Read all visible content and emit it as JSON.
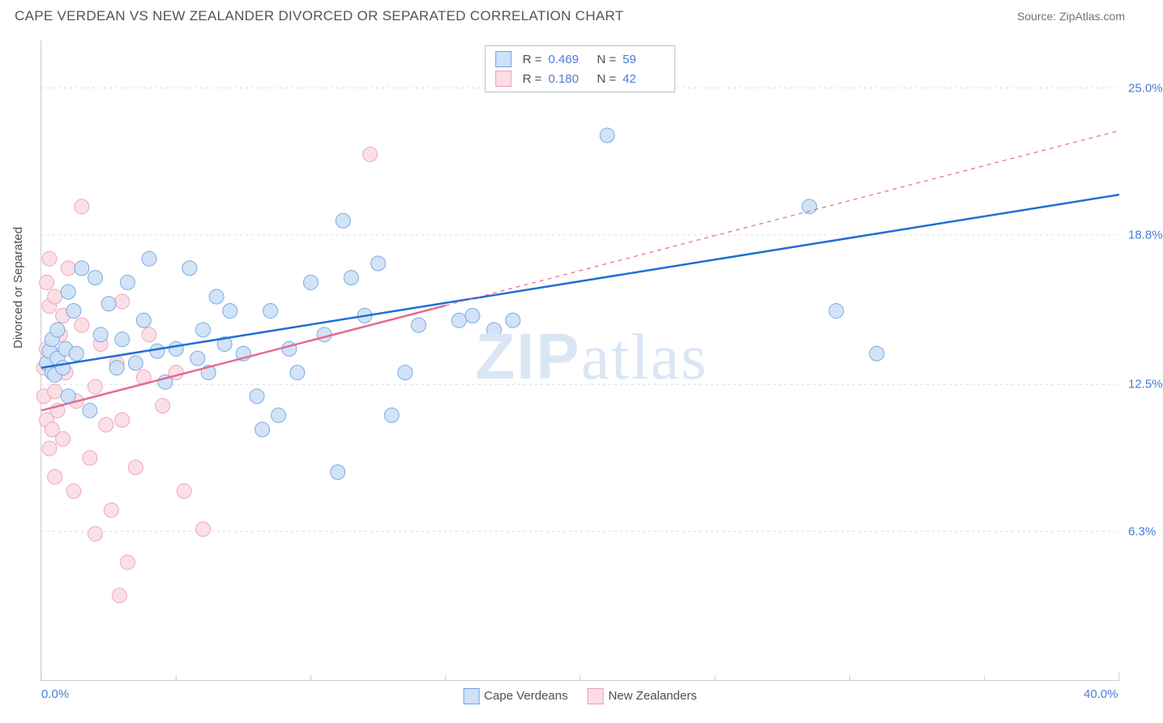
{
  "title": "CAPE VERDEAN VS NEW ZEALANDER DIVORCED OR SEPARATED CORRELATION CHART",
  "source_label": "Source: ZipAtlas.com",
  "y_axis_label": "Divorced or Separated",
  "watermark_prefix": "ZIP",
  "watermark_suffix": "atlas",
  "chart": {
    "type": "scatter",
    "background_color": "#ffffff",
    "grid_color": "#d9dce2",
    "axis_color": "#c9ccd2",
    "xlim": [
      0,
      40
    ],
    "ylim": [
      0,
      27
    ],
    "x_ticks": [
      {
        "v": 0.0,
        "label": "0.0%"
      },
      {
        "v": 40.0,
        "label": "40.0%"
      }
    ],
    "y_ticks": [
      {
        "v": 6.3,
        "label": "6.3%"
      },
      {
        "v": 12.5,
        "label": "12.5%"
      },
      {
        "v": 18.8,
        "label": "18.8%"
      },
      {
        "v": 25.0,
        "label": "25.0%"
      }
    ],
    "x_minor_ticks": [
      5,
      10,
      15,
      20,
      25,
      30,
      35
    ],
    "series": [
      {
        "name": "Cape Verdeans",
        "fill": "#cfe1f7",
        "stroke": "#6fa4e3",
        "line_color": "#1f6fd6",
        "line_width": 2.5,
        "line_dash_after_x": null,
        "marker_r": 9,
        "R": "0.469",
        "N": "59",
        "regression": {
          "x1": 0,
          "y1": 13.2,
          "x2": 40,
          "y2": 20.5
        },
        "points": [
          [
            0.2,
            13.4
          ],
          [
            0.3,
            13.9
          ],
          [
            0.4,
            13.0
          ],
          [
            0.4,
            14.4
          ],
          [
            0.5,
            12.9
          ],
          [
            0.6,
            13.6
          ],
          [
            0.6,
            14.8
          ],
          [
            0.8,
            13.2
          ],
          [
            0.9,
            14.0
          ],
          [
            1.0,
            12.0
          ],
          [
            1.0,
            16.4
          ],
          [
            1.2,
            15.6
          ],
          [
            1.3,
            13.8
          ],
          [
            1.5,
            17.4
          ],
          [
            1.8,
            11.4
          ],
          [
            2.0,
            17.0
          ],
          [
            2.2,
            14.6
          ],
          [
            2.5,
            15.9
          ],
          [
            2.8,
            13.2
          ],
          [
            3.0,
            14.4
          ],
          [
            3.2,
            16.8
          ],
          [
            3.5,
            13.4
          ],
          [
            3.8,
            15.2
          ],
          [
            4.0,
            17.8
          ],
          [
            4.3,
            13.9
          ],
          [
            4.6,
            12.6
          ],
          [
            5.0,
            14.0
          ],
          [
            5.5,
            17.4
          ],
          [
            5.8,
            13.6
          ],
          [
            6.0,
            14.8
          ],
          [
            6.2,
            13.0
          ],
          [
            6.5,
            16.2
          ],
          [
            6.8,
            14.2
          ],
          [
            7.0,
            15.6
          ],
          [
            7.5,
            13.8
          ],
          [
            8.0,
            12.0
          ],
          [
            8.2,
            10.6
          ],
          [
            8.5,
            15.6
          ],
          [
            8.8,
            11.2
          ],
          [
            9.2,
            14.0
          ],
          [
            9.5,
            13.0
          ],
          [
            10.0,
            16.8
          ],
          [
            10.5,
            14.6
          ],
          [
            11.0,
            8.8
          ],
          [
            11.2,
            19.4
          ],
          [
            11.5,
            17.0
          ],
          [
            12.0,
            15.4
          ],
          [
            12.5,
            17.6
          ],
          [
            13.0,
            11.2
          ],
          [
            13.5,
            13.0
          ],
          [
            14.0,
            15.0
          ],
          [
            15.5,
            15.2
          ],
          [
            16.0,
            15.4
          ],
          [
            16.8,
            14.8
          ],
          [
            17.5,
            15.2
          ],
          [
            21.0,
            23.0
          ],
          [
            28.5,
            20.0
          ],
          [
            29.5,
            15.6
          ],
          [
            31.0,
            13.8
          ]
        ]
      },
      {
        "name": "New Zealanders",
        "fill": "#fbdde5",
        "stroke": "#eda0b5",
        "line_color": "#e46b8f",
        "line_width": 2.5,
        "line_dash_after_x": 15,
        "marker_r": 9,
        "R": "0.180",
        "N": "42",
        "regression": {
          "x1": 0,
          "y1": 11.4,
          "x2": 40,
          "y2": 23.2
        },
        "points": [
          [
            0.1,
            12.0
          ],
          [
            0.1,
            13.2
          ],
          [
            0.2,
            11.0
          ],
          [
            0.2,
            14.0
          ],
          [
            0.2,
            16.8
          ],
          [
            0.3,
            9.8
          ],
          [
            0.3,
            15.8
          ],
          [
            0.3,
            17.8
          ],
          [
            0.4,
            10.6
          ],
          [
            0.4,
            13.8
          ],
          [
            0.5,
            8.6
          ],
          [
            0.5,
            12.2
          ],
          [
            0.5,
            16.2
          ],
          [
            0.6,
            11.4
          ],
          [
            0.7,
            14.6
          ],
          [
            0.8,
            10.2
          ],
          [
            0.8,
            15.4
          ],
          [
            0.9,
            13.0
          ],
          [
            1.0,
            17.4
          ],
          [
            1.2,
            8.0
          ],
          [
            1.3,
            11.8
          ],
          [
            1.5,
            15.0
          ],
          [
            1.5,
            20.0
          ],
          [
            1.8,
            9.4
          ],
          [
            2.0,
            12.4
          ],
          [
            2.0,
            6.2
          ],
          [
            2.2,
            14.2
          ],
          [
            2.4,
            10.8
          ],
          [
            2.6,
            7.2
          ],
          [
            2.8,
            13.4
          ],
          [
            2.9,
            3.6
          ],
          [
            3.0,
            11.0
          ],
          [
            3.0,
            16.0
          ],
          [
            3.2,
            5.0
          ],
          [
            3.5,
            9.0
          ],
          [
            3.8,
            12.8
          ],
          [
            4.0,
            14.6
          ],
          [
            4.5,
            11.6
          ],
          [
            5.0,
            13.0
          ],
          [
            5.3,
            8.0
          ],
          [
            6.0,
            6.4
          ],
          [
            12.2,
            22.2
          ]
        ]
      }
    ],
    "bottom_legend": [
      {
        "label": "Cape Verdeans",
        "fill": "#cfe1f7",
        "stroke": "#6fa4e3"
      },
      {
        "label": "New Zealanders",
        "fill": "#fbdde5",
        "stroke": "#eda0b5"
      }
    ]
  }
}
